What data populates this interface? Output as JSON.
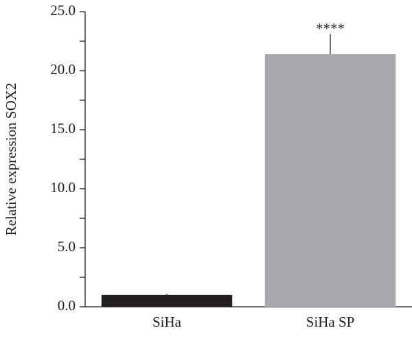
{
  "chart_data": {
    "type": "bar",
    "ylabel": "Relative expression SOX2",
    "categories": [
      "SiHa",
      "SiHa SP"
    ],
    "values": [
      1.0,
      21.4
    ],
    "errors": [
      0.1,
      1.7
    ],
    "colors": [
      "#231f20",
      "#a7a9ac"
    ],
    "annotations": [
      null,
      "****"
    ],
    "ylim": [
      0,
      25
    ],
    "yticks": [
      {
        "value": 0,
        "label": "0.0"
      },
      {
        "value": 5,
        "label": "5.0"
      },
      {
        "value": 10,
        "label": "10.0"
      },
      {
        "value": 15,
        "label": "15.0"
      },
      {
        "value": 20,
        "label": "20.0"
      },
      {
        "value": 25,
        "label": "25.0"
      }
    ],
    "yminorticks": [
      2.5,
      7.5,
      12.5,
      17.5,
      22.5
    ],
    "grid": false
  }
}
